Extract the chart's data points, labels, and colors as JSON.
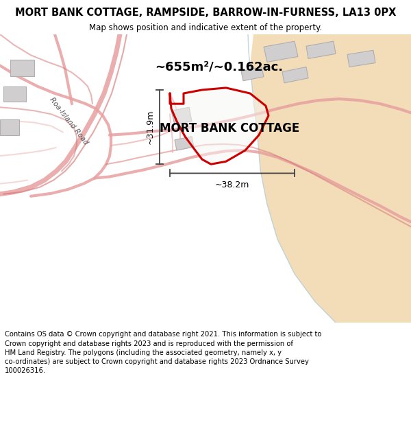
{
  "title": "MORT BANK COTTAGE, RAMPSIDE, BARROW-IN-FURNESS, LA13 0PX",
  "subtitle": "Map shows position and indicative extent of the property.",
  "property_label": "MORT BANK COTTAGE",
  "area_text": "~655m²/~0.162ac.",
  "dim_horizontal": "~38.2m",
  "dim_vertical": "~31.9m",
  "road_label": "Roa-Island Road",
  "footer": "Contains OS data © Crown copyright and database right 2021. This information is subject to\nCrown copyright and database rights 2023 and is reproduced with the permission of\nHM Land Registry. The polygons (including the associated geometry, namely x, y\nco-ordinates) are subject to Crown copyright and database rights 2023 Ordnance Survey\n100026316.",
  "map_bg": "#f7f6f4",
  "beach_color": "#f2ddb8",
  "red_road_color": "#e8a0a0",
  "red_road_dark": "#d47070",
  "property_outline": "#cc0000",
  "building_color": "#d0cece",
  "building_edge": "#b0aeae",
  "dim_color": "#444444",
  "title_fontsize": 10.5,
  "subtitle_fontsize": 8.5,
  "footer_fontsize": 7.2,
  "area_fontsize": 13,
  "label_fontsize": 12,
  "dim_fontsize": 9
}
